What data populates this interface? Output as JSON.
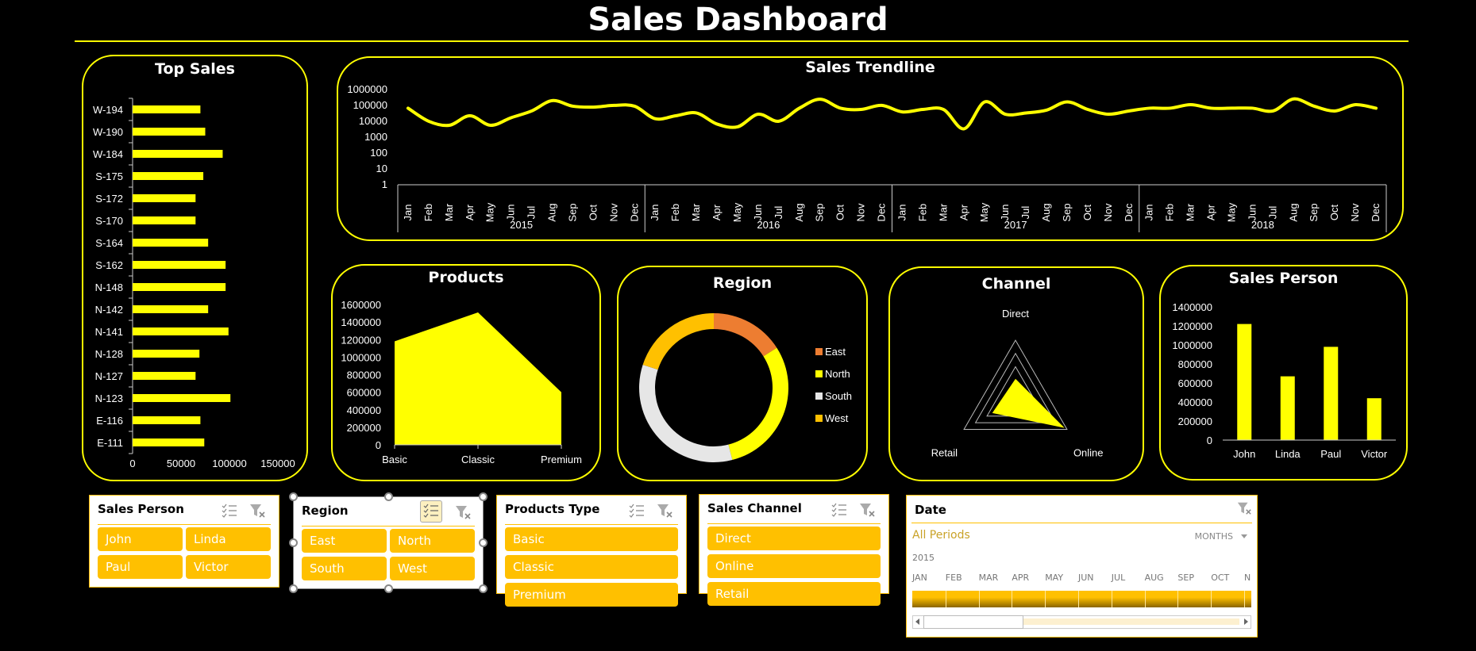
{
  "header": {
    "title": "Sales Dashboard"
  },
  "colors": {
    "accent": "#FFFF00",
    "slicer": "#FFC000",
    "east": "#ED7D31",
    "north": "#FFFF00",
    "south": "#E6E6E6",
    "west": "#FFC000"
  },
  "panels": {
    "top_sales": "Top Sales",
    "trendline": "Sales Trendline",
    "products": "Products",
    "region": "Region",
    "channel": "Channel",
    "sales_person": "Sales Person"
  },
  "chart_data": [
    {
      "type": "bar",
      "orientation": "horizontal",
      "title": "Top Sales",
      "categories": [
        "W-194",
        "W-190",
        "W-184",
        "S-175",
        "S-172",
        "S-170",
        "S-164",
        "S-162",
        "N-148",
        "N-142",
        "N-141",
        "N-128",
        "N-127",
        "N-123",
        "E-116",
        "E-111"
      ],
      "values": [
        70000,
        75000,
        93000,
        73000,
        65000,
        65000,
        78000,
        96000,
        96000,
        78000,
        99000,
        69000,
        65000,
        101000,
        70000,
        74000
      ],
      "xticks": [
        "0",
        "50000",
        "100000",
        "150000"
      ],
      "xlim": [
        0,
        150000
      ]
    },
    {
      "type": "line",
      "title": "Sales Trendline",
      "yscale": "log",
      "yticks": [
        "1000000",
        "100000",
        "10000",
        "1000",
        "100",
        "10",
        "1"
      ],
      "years": [
        "2015",
        "2016",
        "2017",
        "2018"
      ],
      "months": [
        "Jan",
        "Feb",
        "Mar",
        "Apr",
        "May",
        "Jun",
        "Jul",
        "Aug",
        "Sep",
        "Oct",
        "Nov",
        "Dec"
      ],
      "values": [
        60000,
        9000,
        5000,
        20000,
        5000,
        15000,
        40000,
        180000,
        80000,
        70000,
        90000,
        80000,
        13000,
        20000,
        30000,
        6000,
        4000,
        25000,
        9000,
        60000,
        220000,
        60000,
        50000,
        90000,
        35000,
        50000,
        50000,
        3000,
        150000,
        25000,
        30000,
        45000,
        150000,
        50000,
        25000,
        40000,
        60000,
        60000,
        100000,
        60000,
        60000,
        60000,
        40000,
        230000,
        80000,
        40000,
        100000,
        60000
      ]
    },
    {
      "type": "area",
      "title": "Products",
      "categories": [
        "Basic",
        "Classic",
        "Premium"
      ],
      "values": [
        1180000,
        1510000,
        600000
      ],
      "yticks": [
        "1600000",
        "1400000",
        "1200000",
        "1000000",
        "800000",
        "600000",
        "400000",
        "200000",
        "0"
      ],
      "ylim": [
        0,
        1600000
      ]
    },
    {
      "type": "pie",
      "donut": true,
      "title": "Region",
      "categories": [
        "East",
        "North",
        "South",
        "West"
      ],
      "values": [
        16,
        30,
        34,
        20
      ],
      "legend_position": "right"
    },
    {
      "type": "radar",
      "title": "Channel",
      "categories": [
        "Direct",
        "Online",
        "Retail"
      ],
      "values": [
        0.35,
        0.95,
        0.45
      ],
      "rings": 3
    },
    {
      "type": "bar",
      "title": "Sales Person",
      "categories": [
        "John",
        "Linda",
        "Paul",
        "Victor"
      ],
      "values": [
        1220000,
        670000,
        980000,
        440000
      ],
      "yticks": [
        "1400000",
        "1200000",
        "1000000",
        "800000",
        "600000",
        "400000",
        "200000",
        "0"
      ],
      "ylim": [
        0,
        1400000
      ]
    }
  ],
  "slicers": {
    "sales_person": {
      "title": "Sales Person",
      "items": [
        "John",
        "Linda",
        "Paul",
        "Victor"
      ]
    },
    "region": {
      "title": "Region",
      "items": [
        "East",
        "North",
        "South",
        "West"
      ]
    },
    "products_type": {
      "title": "Products Type",
      "items": [
        "Basic",
        "Classic",
        "Premium"
      ]
    },
    "sales_channel": {
      "title": "Sales Channel",
      "items": [
        "Direct",
        "Online",
        "Retail"
      ]
    },
    "date": {
      "title": "Date",
      "period_label": "All Periods",
      "level": "MONTHS",
      "year": "2015",
      "months": [
        "JAN",
        "FEB",
        "MAR",
        "APR",
        "MAY",
        "JUN",
        "JUL",
        "AUG",
        "SEP",
        "OCT",
        "N"
      ]
    }
  }
}
